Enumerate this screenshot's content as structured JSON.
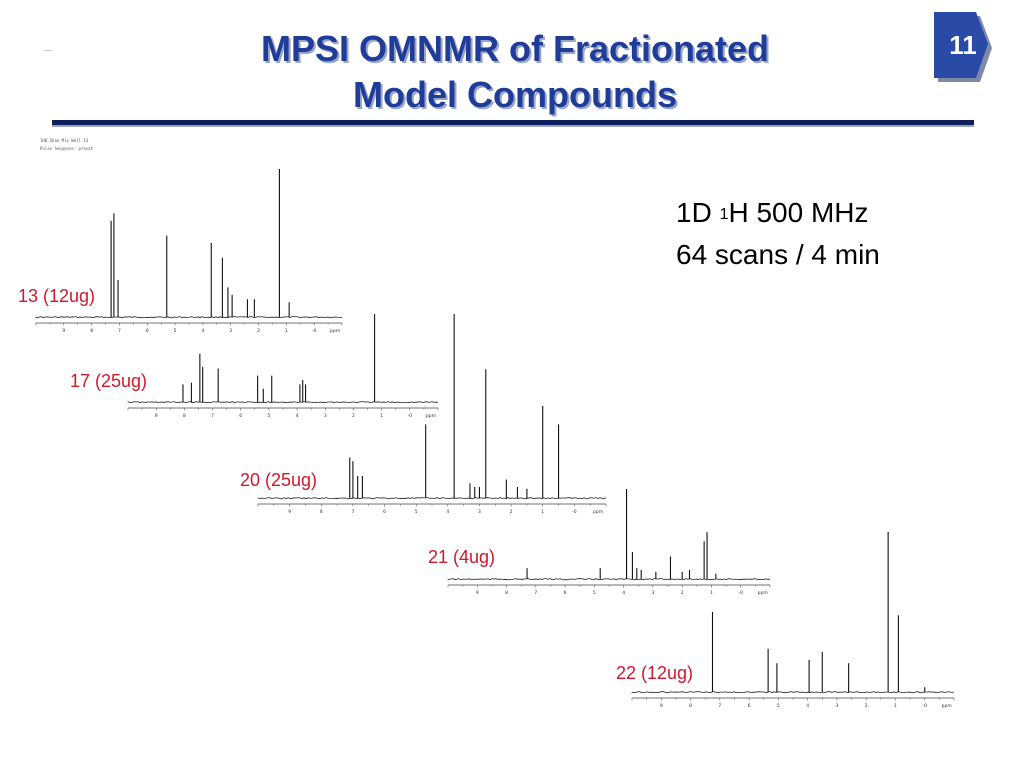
{
  "slide": {
    "title_line1": "MPSI OMNMR of Fractionated",
    "title_line2": "Model Compounds",
    "page_number": "11",
    "header_line1": "1H0 Shao Mix Well 13",
    "header_line2": "Pulse Sequence: presat",
    "info_line1_pre": "1D ",
    "info_line1_sup": "1",
    "info_line1_post": "H 500 MHz",
    "info_line2": "64 scans / 4 min",
    "colors": {
      "title": "#1f3c99",
      "rule": "#0d1f5c",
      "label": "#d0182b",
      "badge": "#2a4aa8"
    }
  },
  "chart_data": [
    {
      "type": "line",
      "name": "13 (12ug)",
      "xaxis_ticks": [
        "9",
        "8",
        "7",
        "6",
        "5",
        "4",
        "3",
        "2",
        "1",
        "-0",
        "ppm"
      ],
      "xlim": [
        10,
        -1
      ],
      "peaks": [
        [
          7.3,
          0.65
        ],
        [
          7.2,
          0.7
        ],
        [
          7.05,
          0.25
        ],
        [
          5.3,
          0.55
        ],
        [
          3.7,
          0.5
        ],
        [
          3.3,
          0.4
        ],
        [
          3.1,
          0.2
        ],
        [
          2.95,
          0.15
        ],
        [
          2.4,
          0.12
        ],
        [
          2.15,
          0.12
        ],
        [
          1.25,
          1.0
        ],
        [
          0.9,
          0.1
        ]
      ]
    },
    {
      "type": "line",
      "name": "17 (25ug)",
      "xaxis_ticks": [
        "9",
        "8",
        "7",
        "6",
        "5",
        "4",
        "3",
        "2",
        "1",
        "-0",
        "ppm"
      ],
      "xlim": [
        10,
        -1
      ],
      "peaks": [
        [
          8.05,
          0.2
        ],
        [
          7.75,
          0.22
        ],
        [
          7.45,
          0.55
        ],
        [
          7.35,
          0.4
        ],
        [
          6.8,
          0.38
        ],
        [
          5.4,
          0.3
        ],
        [
          5.2,
          0.15
        ],
        [
          4.9,
          0.3
        ],
        [
          3.9,
          0.2
        ],
        [
          3.8,
          0.25
        ],
        [
          3.7,
          0.2
        ],
        [
          1.25,
          1.0
        ]
      ]
    },
    {
      "type": "line",
      "name": "20 (25ug)",
      "xaxis_ticks": [
        "9",
        "8",
        "7",
        "6",
        "5",
        "4",
        "3",
        "2",
        "1",
        "-0",
        "ppm"
      ],
      "xlim": [
        10,
        -1
      ],
      "peaks": [
        [
          7.1,
          0.22
        ],
        [
          7.0,
          0.2
        ],
        [
          6.85,
          0.12
        ],
        [
          6.7,
          0.12
        ],
        [
          4.7,
          0.4
        ],
        [
          3.8,
          1.0
        ],
        [
          3.3,
          0.08
        ],
        [
          3.15,
          0.06
        ],
        [
          3.0,
          0.06
        ],
        [
          2.8,
          0.7
        ],
        [
          2.15,
          0.1
        ],
        [
          1.8,
          0.06
        ],
        [
          1.5,
          0.05
        ],
        [
          1.0,
          0.5
        ],
        [
          0.5,
          0.4
        ]
      ]
    },
    {
      "type": "line",
      "name": "21 (4ug)",
      "xaxis_ticks": [
        "9",
        "8",
        "7",
        "6",
        "5",
        "4",
        "3",
        "2",
        "1",
        "-0",
        "ppm"
      ],
      "xlim": [
        10,
        -1
      ],
      "peaks": [
        [
          7.3,
          0.12
        ],
        [
          4.8,
          0.12
        ],
        [
          3.9,
          1.0
        ],
        [
          3.7,
          0.3
        ],
        [
          3.55,
          0.12
        ],
        [
          3.4,
          0.1
        ],
        [
          2.9,
          0.08
        ],
        [
          2.4,
          0.25
        ],
        [
          2.0,
          0.08
        ],
        [
          1.75,
          0.1
        ],
        [
          1.25,
          0.42
        ],
        [
          1.15,
          0.52
        ],
        [
          0.85,
          0.06
        ]
      ]
    },
    {
      "type": "line",
      "name": "22 (12ug)",
      "xaxis_ticks": [
        "9",
        "8",
        "7",
        "6",
        "5",
        "4",
        "3",
        "2",
        "1",
        "-0",
        "ppm"
      ],
      "xlim": [
        10,
        -1
      ],
      "peaks": [
        [
          7.25,
          0.5
        ],
        [
          5.35,
          0.27
        ],
        [
          5.05,
          0.18
        ],
        [
          3.95,
          0.2
        ],
        [
          3.5,
          0.25
        ],
        [
          2.6,
          0.18
        ],
        [
          1.25,
          1.0
        ],
        [
          0.9,
          0.48
        ],
        [
          0.0,
          0.03
        ]
      ]
    }
  ]
}
